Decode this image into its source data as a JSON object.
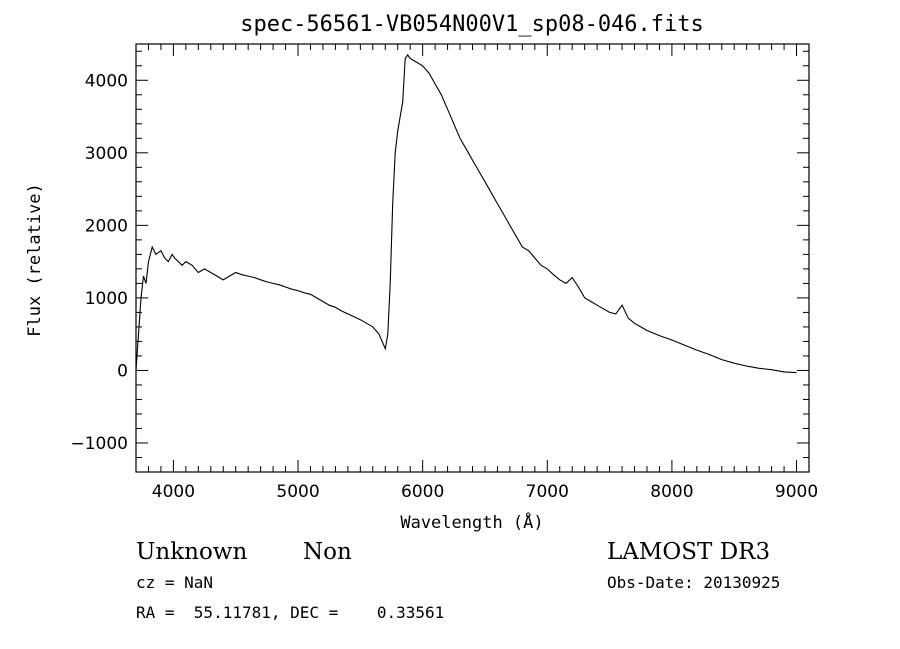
{
  "chart_data": {
    "type": "line",
    "title": "spec-56561-VB054N00V1_sp08-046.fits",
    "xlabel": "Wavelength (Å)",
    "ylabel": "Flux (relative)",
    "xlim": [
      3700,
      9100
    ],
    "ylim": [
      -1400,
      4500
    ],
    "x_ticks": [
      4000,
      5000,
      6000,
      7000,
      8000,
      9000
    ],
    "y_ticks": [
      -1000,
      0,
      1000,
      2000,
      3000,
      4000
    ],
    "grid": false,
    "series": [
      {
        "x": [
          3700,
          3740,
          3760,
          3780,
          3800,
          3830,
          3860,
          3900,
          3930,
          3960,
          3990,
          4010,
          4040,
          4070,
          4100,
          4150,
          4200,
          4250,
          4300,
          4350,
          4400,
          4450,
          4500,
          4550,
          4600,
          4650,
          4700,
          4750,
          4800,
          4850,
          4900,
          4950,
          5000,
          5050,
          5100,
          5150,
          5200,
          5250,
          5300,
          5350,
          5400,
          5450,
          5500,
          5550,
          5600,
          5650,
          5700,
          5720,
          5740,
          5760,
          5780,
          5800,
          5820,
          5840,
          5860,
          5880,
          5900,
          5950,
          6000,
          6050,
          6100,
          6150,
          6200,
          6250,
          6300,
          6350,
          6400,
          6450,
          6500,
          6550,
          6600,
          6650,
          6700,
          6750,
          6800,
          6850,
          6900,
          6950,
          7000,
          7050,
          7100,
          7150,
          7200,
          7250,
          7300,
          7350,
          7400,
          7450,
          7500,
          7550,
          7600,
          7650,
          7700,
          7750,
          7800,
          7900,
          8000,
          8100,
          8200,
          8300,
          8400,
          8500,
          8600,
          8700,
          8800,
          8900,
          9000
        ],
        "values": [
          0,
          1000,
          1300,
          1200,
          1500,
          1700,
          1600,
          1650,
          1550,
          1500,
          1600,
          1550,
          1500,
          1450,
          1500,
          1450,
          1350,
          1400,
          1350,
          1300,
          1250,
          1300,
          1350,
          1320,
          1300,
          1280,
          1250,
          1220,
          1200,
          1180,
          1150,
          1120,
          1100,
          1070,
          1050,
          1000,
          950,
          900,
          870,
          820,
          780,
          740,
          700,
          650,
          600,
          500,
          300,
          500,
          1200,
          2300,
          3000,
          3300,
          3500,
          3700,
          4300,
          4350,
          4300,
          4250,
          4200,
          4100,
          3950,
          3800,
          3600,
          3400,
          3200,
          3050,
          2900,
          2750,
          2600,
          2450,
          2300,
          2150,
          2000,
          1850,
          1700,
          1650,
          1550,
          1450,
          1400,
          1320,
          1250,
          1200,
          1280,
          1150,
          1000,
          950,
          900,
          850,
          800,
          780,
          900,
          720,
          650,
          600,
          550,
          480,
          420,
          350,
          280,
          220,
          150,
          100,
          60,
          30,
          10,
          -20,
          -30
        ]
      }
    ]
  },
  "info": {
    "object_class": "Unknown",
    "subclass": "Non",
    "survey": "LAMOST DR3",
    "redshift": "cz = NaN",
    "obs_date": "Obs-Date: 20130925",
    "coords": "RA =  55.11781, DEC =    0.33561"
  }
}
